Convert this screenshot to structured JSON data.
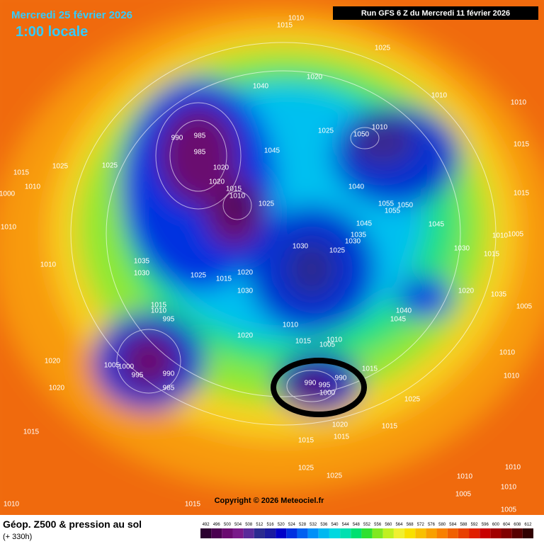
{
  "header": {
    "date": "Mercredi 25 février 2026",
    "time": "1:00 locale",
    "run": "Run GFS 6 Z du Mercredi 11 février 2026"
  },
  "copyright": "Copyright © 2026 Meteociel.fr",
  "footer": {
    "title": "Géop. Z500 & pression au sol",
    "horizon": "(+ 330h)"
  },
  "scale": {
    "ticks": [
      492,
      496,
      500,
      504,
      508,
      512,
      516,
      520,
      524,
      528,
      532,
      536,
      540,
      544,
      548,
      552,
      556,
      560,
      564,
      568,
      572,
      576,
      580,
      584,
      588,
      592,
      596,
      600,
      604,
      608,
      612
    ],
    "colors": [
      "#2b0030",
      "#4a0050",
      "#6a0a70",
      "#7a1a8a",
      "#5a2a9a",
      "#2a2a90",
      "#1a1aa0",
      "#0000c8",
      "#0030e0",
      "#0060f0",
      "#0090f8",
      "#00b8f0",
      "#00d8e0",
      "#00e0b0",
      "#00e070",
      "#30e030",
      "#80e820",
      "#c0f020",
      "#f0f030",
      "#f8e000",
      "#f8c000",
      "#f8a000",
      "#f88000",
      "#f06000",
      "#e84000",
      "#e02000",
      "#c80000",
      "#a00000",
      "#800000",
      "#580000",
      "#300000"
    ]
  },
  "isobars": {
    "labels": [
      "1010",
      "1015",
      "1025",
      "1040",
      "1020",
      "1010",
      "1010",
      "1025",
      "1050",
      "1010",
      "1015",
      "990",
      "985",
      "985",
      "1045",
      "1020",
      "1020",
      "1015",
      "1010",
      "1025",
      "1040",
      "1055",
      "1050",
      "1055",
      "1045",
      "1045",
      "1035",
      "1030",
      "1030",
      "1025",
      "1030",
      "1015",
      "1015",
      "1010",
      "1005",
      "1015",
      "1010",
      "1000",
      "1010",
      "1010",
      "1035",
      "1030",
      "1025",
      "1015",
      "1020",
      "1030",
      "1020",
      "1035",
      "1040",
      "1045",
      "1005",
      "1015",
      "1010",
      "995",
      "1010",
      "1020",
      "1015",
      "1005",
      "1010",
      "1005",
      "1000",
      "995",
      "990",
      "985",
      "1020",
      "1020",
      "1015",
      "990",
      "995",
      "990",
      "1000",
      "1025",
      "1020",
      "1015",
      "1015",
      "1015",
      "1010",
      "1010",
      "1015",
      "1025",
      "1025",
      "1010",
      "1010",
      "1005",
      "1010",
      "1005",
      "1015",
      "1010",
      "1025",
      "1025"
    ]
  }
}
